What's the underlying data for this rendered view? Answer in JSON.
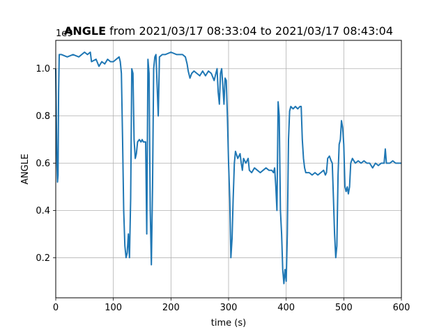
{
  "chart_data": {
    "type": "line",
    "title_bold": "ANGLE",
    "title_rest": " from 2021/03/17 08:33:04 to 2021/03/17 08:43:04",
    "xlabel": "time (s)",
    "ylabel": "ANGLE",
    "offset_text": "1e9",
    "xlim": [
      0,
      600
    ],
    "ylim": [
      0.03,
      1.12
    ],
    "x_ticks": [
      0,
      100,
      200,
      300,
      400,
      500,
      600
    ],
    "y_ticks": [
      0.2,
      0.4,
      0.6,
      0.8,
      1.0
    ],
    "x_tick_labels": [
      "0",
      "100",
      "200",
      "300",
      "400",
      "500",
      "600"
    ],
    "y_tick_labels": [
      "0.2",
      "0.4",
      "0.6",
      "0.8",
      "1.0"
    ],
    "grid": true,
    "line_color": "#1f77b4",
    "series": [
      {
        "name": "",
        "points": [
          [
            0,
            1.0
          ],
          [
            1,
            0.8
          ],
          [
            2,
            0.6
          ],
          [
            3,
            0.52
          ],
          [
            4,
            0.55
          ],
          [
            5,
            0.9
          ],
          [
            6,
            1.06
          ],
          [
            10,
            1.06
          ],
          [
            20,
            1.05
          ],
          [
            30,
            1.06
          ],
          [
            40,
            1.05
          ],
          [
            50,
            1.07
          ],
          [
            55,
            1.06
          ],
          [
            60,
            1.07
          ],
          [
            62,
            1.03
          ],
          [
            70,
            1.04
          ],
          [
            75,
            1.01
          ],
          [
            80,
            1.03
          ],
          [
            85,
            1.02
          ],
          [
            90,
            1.04
          ],
          [
            95,
            1.03
          ],
          [
            100,
            1.03
          ],
          [
            105,
            1.04
          ],
          [
            110,
            1.05
          ],
          [
            112,
            1.03
          ],
          [
            114,
            0.98
          ],
          [
            116,
            0.7
          ],
          [
            118,
            0.4
          ],
          [
            120,
            0.25
          ],
          [
            122,
            0.2
          ],
          [
            124,
            0.22
          ],
          [
            126,
            0.3
          ],
          [
            128,
            0.2
          ],
          [
            130,
            0.45
          ],
          [
            132,
            1.0
          ],
          [
            134,
            0.98
          ],
          [
            136,
            0.7
          ],
          [
            138,
            0.62
          ],
          [
            140,
            0.64
          ],
          [
            142,
            0.69
          ],
          [
            145,
            0.7
          ],
          [
            148,
            0.69
          ],
          [
            150,
            0.7
          ],
          [
            152,
            0.69
          ],
          [
            156,
            0.69
          ],
          [
            158,
            0.3
          ],
          [
            160,
            1.04
          ],
          [
            162,
            0.98
          ],
          [
            164,
            0.4
          ],
          [
            166,
            0.17
          ],
          [
            168,
            0.5
          ],
          [
            170,
            1.0
          ],
          [
            172,
            1.05
          ],
          [
            174,
            1.06
          ],
          [
            178,
            0.8
          ],
          [
            180,
            1.05
          ],
          [
            185,
            1.06
          ],
          [
            190,
            1.06
          ],
          [
            200,
            1.07
          ],
          [
            210,
            1.06
          ],
          [
            220,
            1.06
          ],
          [
            225,
            1.05
          ],
          [
            228,
            1.02
          ],
          [
            230,
            0.99
          ],
          [
            233,
            0.96
          ],
          [
            236,
            0.98
          ],
          [
            240,
            0.99
          ],
          [
            245,
            0.98
          ],
          [
            250,
            0.97
          ],
          [
            255,
            0.99
          ],
          [
            260,
            0.97
          ],
          [
            265,
            0.99
          ],
          [
            270,
            0.98
          ],
          [
            275,
            0.95
          ],
          [
            278,
            0.98
          ],
          [
            280,
            1.0
          ],
          [
            282,
            0.9
          ],
          [
            284,
            0.85
          ],
          [
            286,
            0.98
          ],
          [
            288,
            1.0
          ],
          [
            290,
            0.93
          ],
          [
            292,
            0.85
          ],
          [
            294,
            0.96
          ],
          [
            296,
            0.95
          ],
          [
            298,
            0.8
          ],
          [
            300,
            0.6
          ],
          [
            302,
            0.45
          ],
          [
            304,
            0.2
          ],
          [
            306,
            0.28
          ],
          [
            308,
            0.45
          ],
          [
            310,
            0.6
          ],
          [
            312,
            0.65
          ],
          [
            316,
            0.62
          ],
          [
            320,
            0.64
          ],
          [
            322,
            0.6
          ],
          [
            324,
            0.57
          ],
          [
            326,
            0.62
          ],
          [
            330,
            0.6
          ],
          [
            334,
            0.62
          ],
          [
            336,
            0.57
          ],
          [
            340,
            0.56
          ],
          [
            345,
            0.58
          ],
          [
            350,
            0.57
          ],
          [
            355,
            0.56
          ],
          [
            360,
            0.57
          ],
          [
            365,
            0.58
          ],
          [
            370,
            0.57
          ],
          [
            375,
            0.57
          ],
          [
            378,
            0.56
          ],
          [
            380,
            0.58
          ],
          [
            382,
            0.5
          ],
          [
            384,
            0.4
          ],
          [
            386,
            0.86
          ],
          [
            388,
            0.8
          ],
          [
            390,
            0.4
          ],
          [
            392,
            0.3
          ],
          [
            394,
            0.15
          ],
          [
            396,
            0.09
          ],
          [
            398,
            0.15
          ],
          [
            400,
            0.1
          ],
          [
            402,
            0.3
          ],
          [
            404,
            0.7
          ],
          [
            406,
            0.82
          ],
          [
            408,
            0.84
          ],
          [
            412,
            0.83
          ],
          [
            416,
            0.84
          ],
          [
            420,
            0.83
          ],
          [
            424,
            0.84
          ],
          [
            426,
            0.84
          ],
          [
            428,
            0.7
          ],
          [
            430,
            0.62
          ],
          [
            432,
            0.58
          ],
          [
            434,
            0.56
          ],
          [
            440,
            0.56
          ],
          [
            445,
            0.55
          ],
          [
            450,
            0.56
          ],
          [
            455,
            0.55
          ],
          [
            460,
            0.56
          ],
          [
            465,
            0.57
          ],
          [
            468,
            0.55
          ],
          [
            470,
            0.56
          ],
          [
            472,
            0.62
          ],
          [
            475,
            0.63
          ],
          [
            478,
            0.61
          ],
          [
            480,
            0.6
          ],
          [
            482,
            0.45
          ],
          [
            484,
            0.3
          ],
          [
            486,
            0.2
          ],
          [
            488,
            0.25
          ],
          [
            490,
            0.55
          ],
          [
            492,
            0.68
          ],
          [
            494,
            0.7
          ],
          [
            496,
            0.78
          ],
          [
            498,
            0.75
          ],
          [
            500,
            0.68
          ],
          [
            502,
            0.5
          ],
          [
            504,
            0.48
          ],
          [
            506,
            0.5
          ],
          [
            508,
            0.47
          ],
          [
            510,
            0.5
          ],
          [
            512,
            0.6
          ],
          [
            515,
            0.62
          ],
          [
            520,
            0.6
          ],
          [
            525,
            0.61
          ],
          [
            530,
            0.6
          ],
          [
            535,
            0.61
          ],
          [
            540,
            0.6
          ],
          [
            545,
            0.6
          ],
          [
            550,
            0.58
          ],
          [
            555,
            0.6
          ],
          [
            560,
            0.59
          ],
          [
            565,
            0.6
          ],
          [
            570,
            0.6
          ],
          [
            572,
            0.66
          ],
          [
            574,
            0.6
          ],
          [
            580,
            0.6
          ],
          [
            585,
            0.61
          ],
          [
            590,
            0.6
          ],
          [
            595,
            0.6
          ],
          [
            600,
            0.6
          ]
        ]
      }
    ]
  }
}
